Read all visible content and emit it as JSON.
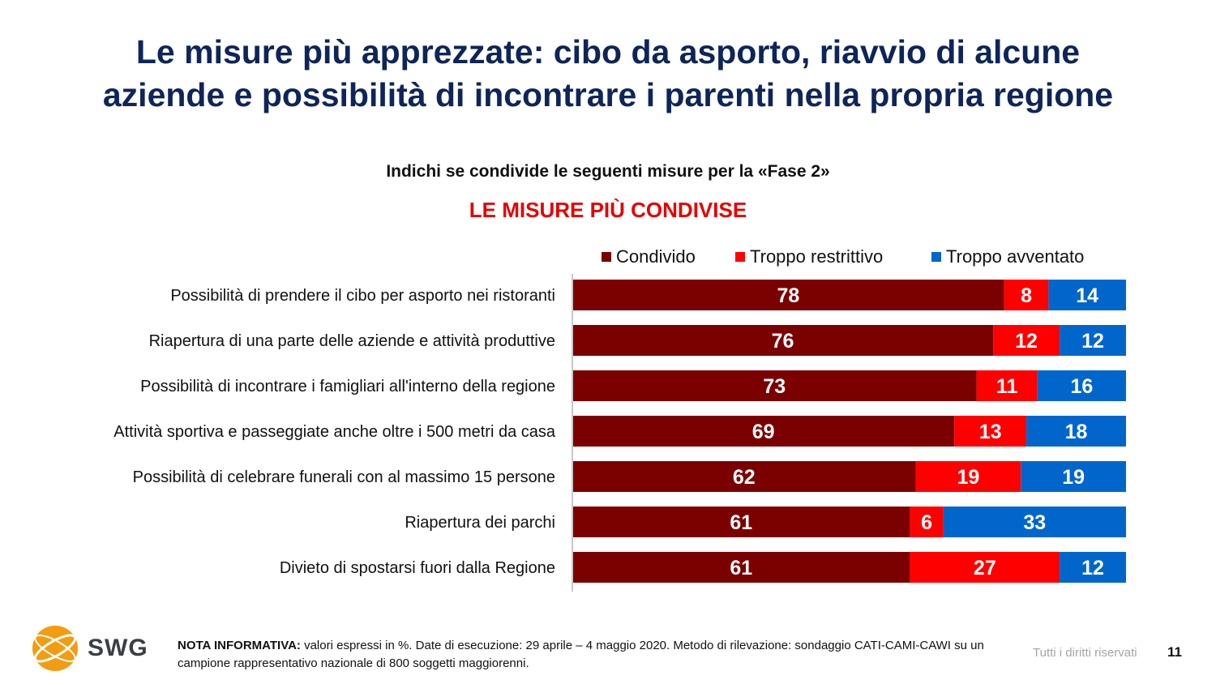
{
  "header": {
    "title_line1": "Le misure più apprezzate: cibo da asporto, riavvio di alcune",
    "title_line2": "aziende e possibilità di incontrare i parenti nella propria regione",
    "subtitle": "Indichi se condivide le seguenti misure per la «Fase 2»",
    "chart_heading": "LE MISURE PIÙ CONDIVISE"
  },
  "chart_data": {
    "type": "bar",
    "orientation": "horizontal",
    "stacked": true,
    "unit": "%",
    "categories": [
      "Possibilità di prendere il cibo per asporto nei ristoranti",
      "Riapertura di una parte delle aziende e attività produttive",
      "Possibilità di incontrare i famigliari all'interno della regione",
      "Attività sportiva e passeggiate anche oltre i 500 metri da casa",
      "Possibilità di celebrare funerali con al massimo 15 persone",
      "Riapertura dei parchi",
      "Divieto di spostarsi fuori dalla Regione"
    ],
    "series": [
      {
        "name": "Condivido",
        "color": "#7b0000",
        "values": [
          78,
          76,
          73,
          69,
          62,
          61,
          61
        ]
      },
      {
        "name": "Troppo restrittivo",
        "color": "#ff0000",
        "values": [
          8,
          12,
          11,
          13,
          19,
          6,
          27
        ]
      },
      {
        "name": "Troppo avventato",
        "color": "#0066cc",
        "values": [
          14,
          12,
          16,
          18,
          19,
          33,
          12
        ]
      }
    ],
    "xlim": [
      0,
      100
    ],
    "legend": "top",
    "grid": false,
    "data_labels": true
  },
  "footer": {
    "logo_text": "SWG",
    "note_label": "NOTA INFORMATIVA:",
    "note_text": " valori espressi in %. Date di esecuzione: 29 aprile – 4 maggio 2020. Metodo di rilevazione: sondaggio CATI-CAMI-CAWI su un campione rappresentativo nazionale di 800 soggetti maggiorenni.",
    "rights": "Tutti i diritti riservati",
    "page_number": "11"
  }
}
